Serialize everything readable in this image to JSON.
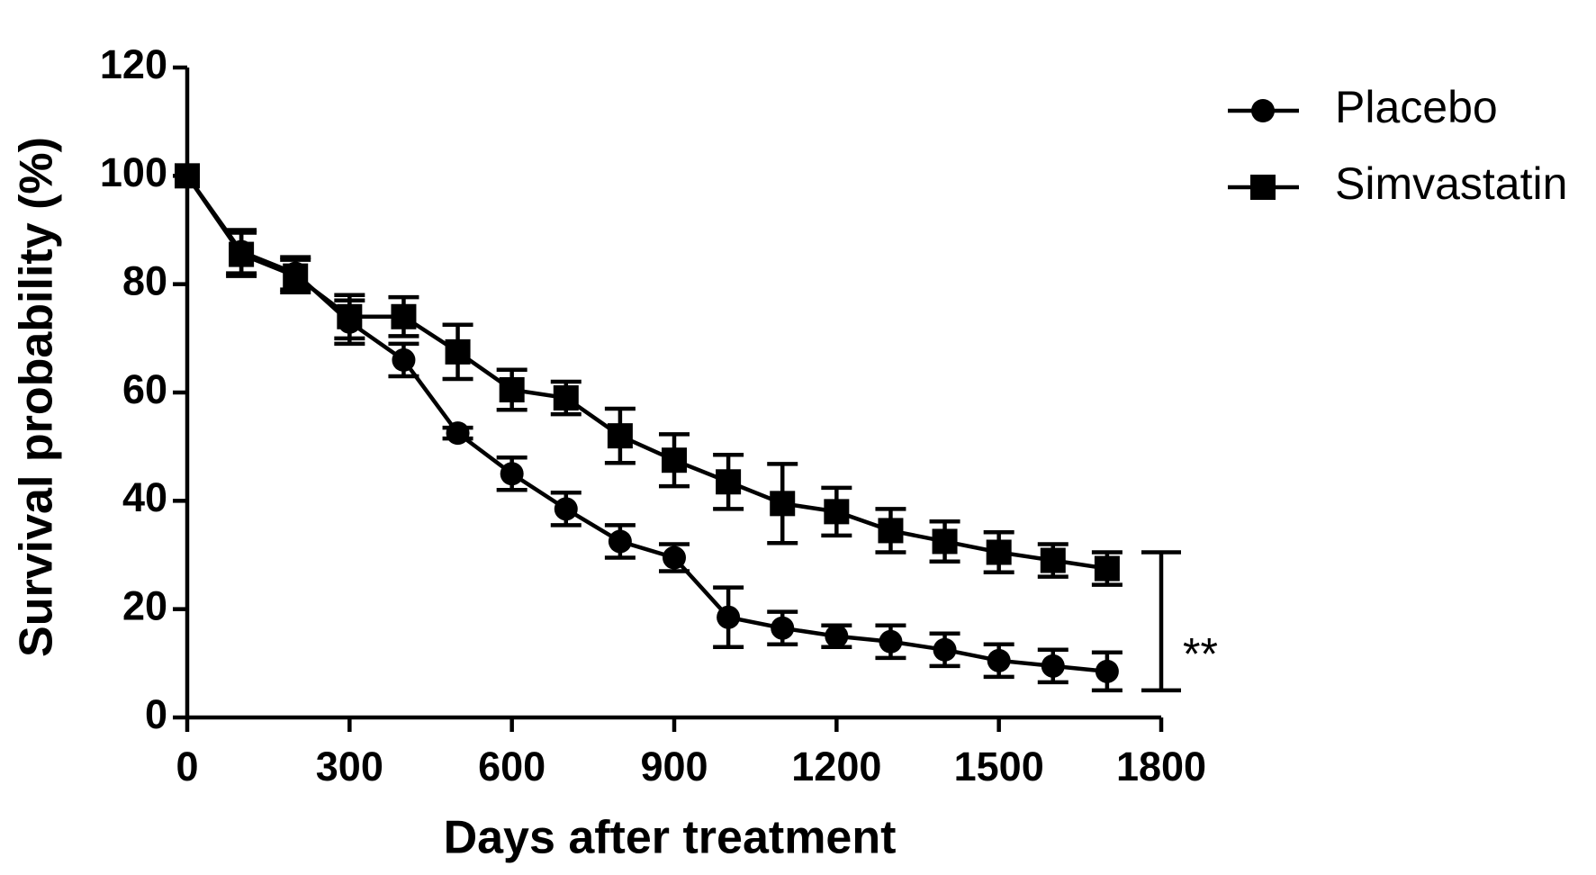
{
  "chart_data": {
    "type": "line",
    "x_label": "Days after treatment",
    "y_label": "Survival probability (%)",
    "x": [
      0,
      100,
      200,
      300,
      400,
      500,
      600,
      700,
      800,
      900,
      1000,
      1100,
      1200,
      1300,
      1400,
      1500,
      1600,
      1700
    ],
    "series": [
      {
        "name": "Placebo",
        "color": "#000000",
        "marker": "circle",
        "values": [
          100,
          86,
          82,
          73,
          66,
          52.5,
          45,
          38.5,
          32.5,
          29.5,
          18.5,
          16.5,
          15,
          14,
          12.5,
          10.5,
          9.5,
          8.5
        ],
        "errors": [
          0,
          4,
          3,
          4,
          3,
          1,
          3,
          3,
          3,
          2.5,
          5.5,
          3,
          2,
          3,
          3,
          3,
          3,
          3.5
        ]
      },
      {
        "name": "Simvastatin",
        "color": "#000000",
        "marker": "square",
        "values": [
          100,
          85.5,
          81.5,
          74,
          74,
          67.5,
          60.5,
          59,
          52,
          47.5,
          43.5,
          39.5,
          38,
          34.5,
          32.5,
          30.5,
          29,
          27.5
        ],
        "errors": [
          0,
          4,
          3,
          4,
          3.6,
          5,
          3.7,
          3,
          5,
          4.8,
          5,
          7.3,
          4.4,
          4,
          3.7,
          3.7,
          3,
          3
        ]
      }
    ],
    "annotation": "**",
    "xlim": [
      0,
      1800
    ],
    "xticks": [
      0,
      300,
      600,
      900,
      1200,
      1500,
      1800
    ],
    "ylim": [
      0,
      120
    ],
    "yticks": [
      0,
      20,
      40,
      60,
      80,
      100,
      120
    ],
    "grid": false,
    "legend": "right"
  }
}
